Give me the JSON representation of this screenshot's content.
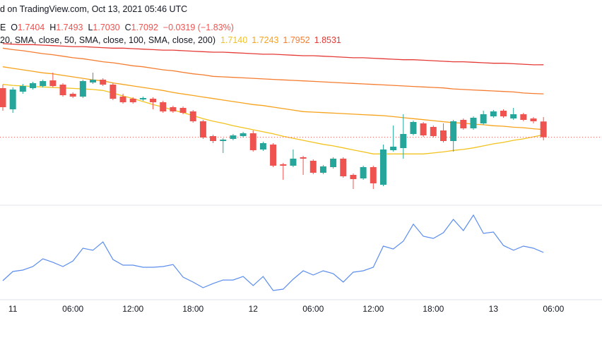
{
  "chart_data": {
    "type": "candlestick",
    "header": "d on TradingView.com, Oct 13, 2021 05:46 UTC",
    "symbol_tail": "E",
    "ohlc_letters": [
      "O",
      "H",
      "L",
      "C"
    ],
    "last_value_labels": {
      "open": "1.7404",
      "high": "1.7493",
      "low": "1.7030",
      "close": "1.7092"
    },
    "change": "−0.0319 (−1.83%)",
    "sma_legend": "20, SMA, close, 50, SMA, close, 100, SMA, close, 200)",
    "up_color": "#26a69a",
    "down_color": "#ef5350",
    "ylim": [
      1.5756,
      1.9116
    ],
    "categories": [
      null,
      "11",
      null,
      null,
      null,
      null,
      null,
      "06:00",
      null,
      null,
      null,
      null,
      null,
      "12:00",
      null,
      null,
      null,
      null,
      null,
      "18:00",
      null,
      null,
      null,
      null,
      null,
      "12",
      null,
      null,
      null,
      null,
      null,
      "06:00",
      null,
      null,
      null,
      null,
      null,
      "12:00",
      null,
      null,
      null,
      null,
      null,
      "18:00",
      null,
      null,
      null,
      null,
      null,
      "13",
      null,
      null,
      null,
      null,
      null,
      "06:00"
    ],
    "open": [
      1.8066,
      1.7646,
      1.7996,
      1.8066,
      1.8108,
      1.822,
      1.8136,
      1.7954,
      1.7898,
      1.8178,
      1.8234,
      1.8136,
      1.7898,
      1.7856,
      1.7842,
      1.7856,
      1.7786,
      1.7688,
      1.7674,
      1.7604,
      1.7408,
      1.7114,
      1.7016,
      1.7058,
      1.7114,
      1.717,
      1.6848,
      1.6946,
      1.6554,
      1.6526,
      1.6694,
      1.6624,
      1.6386,
      1.6498,
      1.6666,
      1.6344,
      1.6274,
      1.6498,
      1.6148,
      1.6834,
      1.6876,
      1.7156,
      1.7366,
      1.7296,
      1.7226,
      1.7016,
      1.7436,
      1.7268,
      1.7366,
      1.7506,
      1.7618,
      1.7464,
      1.7548,
      1.7464,
      1.7404,
      null
    ],
    "high": [
      1.8136,
      1.808,
      1.815,
      1.8192,
      1.8234,
      1.8374,
      1.8164,
      1.7982,
      1.8234,
      1.8374,
      1.8262,
      1.8164,
      1.7954,
      1.7884,
      1.7898,
      1.7884,
      1.7814,
      1.7716,
      1.7702,
      1.7632,
      1.7436,
      1.7142,
      1.7072,
      1.7156,
      1.7198,
      1.7226,
      1.7002,
      1.6974,
      1.6582,
      1.6848,
      1.6722,
      1.6652,
      1.654,
      1.6694,
      1.6694,
      1.6372,
      1.6526,
      1.6526,
      1.6946,
      1.7324,
      1.7548,
      1.7422,
      1.7394,
      1.7324,
      1.7366,
      1.7436,
      1.7464,
      1.7506,
      1.7618,
      1.7632,
      1.7646,
      1.7674,
      1.7576,
      1.7492,
      1.7493,
      null
    ],
    "low": [
      1.7618,
      1.7576,
      1.7954,
      1.8038,
      1.808,
      1.808,
      1.7898,
      1.787,
      1.787,
      1.815,
      1.8108,
      1.7828,
      1.7758,
      1.7758,
      1.7814,
      1.7646,
      1.7576,
      1.7576,
      1.7548,
      1.738,
      1.7058,
      1.6974,
      1.6778,
      1.703,
      1.7086,
      1.6806,
      1.682,
      1.6498,
      1.6246,
      1.6498,
      1.6344,
      1.6358,
      1.6358,
      1.647,
      1.6288,
      1.6064,
      1.6246,
      1.6064,
      1.612,
      1.6806,
      1.6666,
      1.7128,
      1.71,
      1.7086,
      1.6988,
      1.6806,
      1.724,
      1.724,
      1.7338,
      1.7478,
      1.7478,
      1.7436,
      1.7408,
      1.7366,
      1.703,
      null
    ],
    "close": [
      1.7688,
      1.8038,
      1.8108,
      1.8164,
      1.8206,
      1.8108,
      1.7926,
      1.7898,
      1.8206,
      1.8234,
      1.8136,
      1.7856,
      1.7786,
      1.7786,
      1.787,
      1.7786,
      1.7604,
      1.7604,
      1.7576,
      1.7408,
      1.7086,
      1.7016,
      1.7044,
      1.7128,
      1.717,
      1.6834,
      1.6974,
      1.6526,
      1.6526,
      1.6666,
      1.6666,
      1.6386,
      1.6512,
      1.6666,
      1.6316,
      1.626,
      1.6498,
      1.6176,
      1.6848,
      1.6904,
      1.7156,
      1.7394,
      1.7128,
      1.7114,
      1.7016,
      1.7408,
      1.7268,
      1.7478,
      1.7548,
      1.7604,
      1.7506,
      1.7548,
      1.7436,
      1.7408,
      1.7092,
      null
    ],
    "series": [
      {
        "color": "#f2c21d",
        "value_label": "1.7140",
        "values": [
          1.814,
          1.812,
          1.811,
          1.81,
          1.809,
          1.808,
          1.807,
          1.806,
          1.805,
          1.804,
          1.802,
          1.797,
          1.791,
          1.786,
          1.78,
          1.774,
          1.769,
          1.763,
          1.758,
          1.752,
          1.746,
          1.741,
          1.737,
          1.732,
          1.728,
          1.724,
          1.72,
          1.716,
          1.711,
          1.707,
          1.703,
          1.699,
          1.695,
          1.692,
          1.688,
          1.684,
          1.68,
          1.676,
          1.676,
          1.676,
          1.676,
          1.676,
          1.676,
          1.678,
          1.68,
          1.683,
          1.685,
          1.688,
          1.692,
          1.696,
          1.699,
          1.703,
          1.706,
          1.71,
          1.714,
          null
        ]
      },
      {
        "color": "#f7a21b",
        "value_label": "1.7243",
        "values": [
          1.849,
          1.846,
          1.843,
          1.84,
          1.837,
          1.835,
          1.832,
          1.829,
          1.826,
          1.823,
          1.821,
          1.817,
          1.814,
          1.811,
          1.808,
          1.805,
          1.802,
          1.798,
          1.795,
          1.792,
          1.789,
          1.786,
          1.783,
          1.78,
          1.777,
          1.774,
          1.772,
          1.769,
          1.766,
          1.763,
          1.76,
          1.759,
          1.758,
          1.757,
          1.756,
          1.755,
          1.754,
          1.753,
          1.752,
          1.75,
          1.748,
          1.746,
          1.744,
          1.742,
          1.74,
          1.738,
          1.737,
          1.735,
          1.734,
          1.732,
          1.731,
          1.729,
          1.728,
          1.726,
          1.7243,
          null
        ]
      },
      {
        "color": "#f57c2f",
        "value_label": "1.7952",
        "values": [
          1.886,
          1.883,
          1.881,
          1.878,
          1.875,
          1.873,
          1.87,
          1.867,
          1.865,
          1.862,
          1.859,
          1.857,
          1.854,
          1.851,
          1.849,
          1.846,
          1.843,
          1.841,
          1.838,
          1.835,
          1.833,
          1.83,
          1.829,
          1.828,
          1.827,
          1.826,
          1.825,
          1.824,
          1.823,
          1.822,
          1.821,
          1.82,
          1.819,
          1.818,
          1.817,
          1.816,
          1.815,
          1.814,
          1.813,
          1.812,
          1.811,
          1.81,
          1.809,
          1.808,
          1.807,
          1.805,
          1.804,
          1.803,
          1.802,
          1.801,
          1.8,
          1.799,
          1.797,
          1.796,
          1.7952,
          null
        ]
      },
      {
        "color": "#e53935",
        "value_label": "1.8531",
        "values": [
          1.895,
          1.894,
          1.893,
          1.893,
          1.892,
          1.891,
          1.89,
          1.889,
          1.889,
          1.888,
          1.887,
          1.886,
          1.886,
          1.885,
          1.884,
          1.883,
          1.882,
          1.882,
          1.881,
          1.88,
          1.879,
          1.878,
          1.878,
          1.877,
          1.876,
          1.875,
          1.874,
          1.874,
          1.873,
          1.872,
          1.871,
          1.871,
          1.87,
          1.869,
          1.868,
          1.867,
          1.867,
          1.866,
          1.865,
          1.864,
          1.863,
          1.863,
          1.862,
          1.861,
          1.86,
          1.859,
          1.859,
          1.858,
          1.857,
          1.856,
          1.856,
          1.855,
          1.854,
          1.853,
          1.8531,
          null
        ]
      }
    ],
    "indicator": {
      "color": "#5b8def",
      "ylim": [
        0,
        100
      ],
      "values": [
        23.7,
        33.3,
        34.8,
        38.5,
        46.7,
        43.0,
        38.5,
        44.4,
        57.8,
        55.6,
        64.4,
        45.9,
        40.0,
        40.0,
        37.8,
        37.8,
        38.5,
        40.7,
        27.4,
        22.2,
        16.3,
        20.7,
        24.4,
        24.4,
        28.1,
        18.5,
        28.1,
        13.3,
        14.8,
        25.2,
        34.1,
        29.6,
        34.1,
        31.1,
        22.2,
        32.6,
        34.1,
        37.8,
        60.0,
        57.0,
        65.2,
        83.0,
        70.4,
        68.1,
        74.1,
        88.1,
        76.3,
        92.6,
        73.3,
        74.8,
        60.7,
        55.6,
        60.0,
        57.8,
        53.3,
        null
      ]
    }
  }
}
